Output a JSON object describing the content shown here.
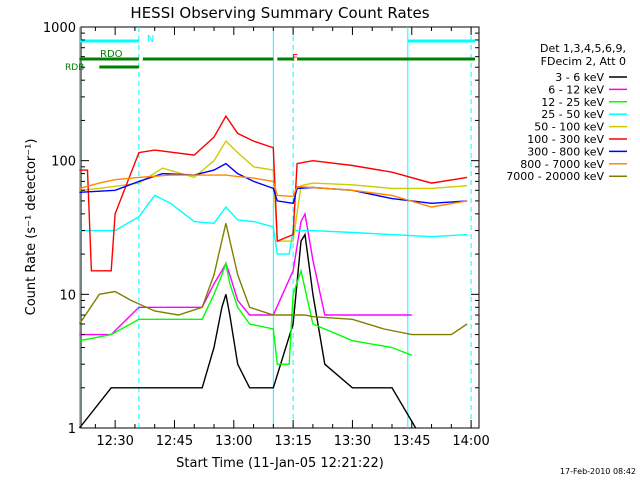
{
  "chart_data": {
    "type": "line",
    "title": "HESSI Observing Summary Count Rates",
    "xlabel": "Start Time (11-Jan-05 12:21:22)",
    "ylabel": "Count Rate (s⁻¹ detector⁻¹)",
    "x_scale": "time",
    "x_range": [
      "12:21:22",
      "14:02:00"
    ],
    "y_scale": "log",
    "ylim": [
      1,
      1000
    ],
    "x_ticks": [
      "12:30",
      "12:45",
      "13:00",
      "13:15",
      "13:30",
      "13:45",
      "14:00"
    ],
    "y_ticks": [
      "1",
      "10",
      "100",
      "1000"
    ],
    "legend_header": [
      "Det 1,3,4,5,6,9,",
      "FDecim 2, Att 0"
    ],
    "series": [
      {
        "name": "3 - 6 keV",
        "color": "#000000",
        "x": [
          "12:21",
          "12:29",
          "12:36",
          "12:45",
          "12:52",
          "12:55",
          "12:57",
          "12:58",
          "12:59",
          "13:01",
          "13:04",
          "13:10",
          "13:15",
          "13:17",
          "13:18",
          "13:20",
          "13:23",
          "13:30",
          "13:40",
          "13:46"
        ],
        "y": [
          1,
          2,
          2,
          2,
          2,
          4,
          8,
          10,
          7,
          3,
          2,
          2,
          6,
          25,
          28,
          10,
          3,
          2,
          2,
          1
        ]
      },
      {
        "name": "6 - 12 keV",
        "color": "#ff00ff",
        "x": [
          "12:21",
          "12:29",
          "12:36",
          "12:45",
          "12:52",
          "12:55",
          "12:57",
          "12:58",
          "12:59",
          "13:01",
          "13:04",
          "13:10",
          "13:15",
          "13:17",
          "13:18",
          "13:20",
          "13:23",
          "13:30",
          "13:40",
          "13:45"
        ],
        "y": [
          5,
          5,
          8,
          8,
          8,
          12,
          15,
          17,
          14,
          9,
          7,
          7,
          15,
          35,
          40,
          18,
          7,
          7,
          7,
          7
        ]
      },
      {
        "name": "12 - 25 keV",
        "color": "#00ff00",
        "x": [
          "12:21",
          "12:29",
          "12:36",
          "12:45",
          "12:52",
          "12:55",
          "12:57",
          "12:58",
          "12:59",
          "13:01",
          "13:04",
          "13:10",
          "13:11",
          "13:14",
          "13:15",
          "13:17",
          "13:20",
          "13:30",
          "13:40",
          "13:45"
        ],
        "y": [
          4.5,
          5,
          6.5,
          6.5,
          6.5,
          10,
          14,
          17,
          12,
          8,
          6,
          5.5,
          3,
          3,
          10,
          15,
          6,
          4.5,
          4,
          3.5
        ]
      },
      {
        "name": "25 - 50 keV",
        "color": "#00ffff",
        "x": [
          "12:21",
          "12:26",
          "12:30",
          "12:36",
          "12:40",
          "12:44",
          "12:50",
          "12:55",
          "12:58",
          "13:01",
          "13:05",
          "13:10",
          "13:11",
          "13:14",
          "13:15",
          "13:20",
          "13:30",
          "13:40",
          "13:50",
          "13:59"
        ],
        "y": [
          30,
          30,
          30,
          38,
          55,
          48,
          35,
          34,
          45,
          36,
          35,
          32,
          20,
          20,
          30,
          30,
          29,
          28,
          27,
          28
        ]
      },
      {
        "name": "50 - 100 keV",
        "color": "#cccc00",
        "x": [
          "12:21",
          "12:26",
          "12:36",
          "12:42",
          "12:50",
          "12:55",
          "12:58",
          "13:01",
          "13:05",
          "13:10",
          "13:11",
          "13:15",
          "13:17",
          "13:20",
          "13:30",
          "13:40",
          "13:50",
          "13:59"
        ],
        "y": [
          60,
          62,
          68,
          88,
          75,
          100,
          140,
          115,
          90,
          85,
          25,
          25,
          65,
          68,
          66,
          62,
          62,
          65
        ]
      },
      {
        "name": "100 - 300 keV",
        "color": "#ff0000",
        "x": [
          "12:21",
          "12:23",
          "12:24",
          "12:29",
          "12:30",
          "12:36",
          "12:40",
          "12:50",
          "12:55",
          "12:58",
          "13:01",
          "13:05",
          "13:10",
          "13:11",
          "13:15",
          "13:16",
          "13:20",
          "13:30",
          "13:40",
          "13:50",
          "13:59"
        ],
        "y": [
          85,
          85,
          15,
          15,
          40,
          115,
          120,
          110,
          150,
          215,
          160,
          140,
          125,
          25,
          28,
          95,
          100,
          92,
          82,
          68,
          75
        ]
      },
      {
        "name": "300 - 800 keV",
        "color": "#0000ff",
        "x": [
          "12:21",
          "12:30",
          "12:36",
          "12:42",
          "12:50",
          "12:55",
          "12:58",
          "13:01",
          "13:05",
          "13:10",
          "13:11",
          "13:15",
          "13:16",
          "13:20",
          "13:30",
          "13:40",
          "13:50",
          "13:59"
        ],
        "y": [
          58,
          60,
          70,
          80,
          78,
          85,
          95,
          80,
          70,
          62,
          50,
          48,
          62,
          63,
          60,
          52,
          48,
          50
        ]
      },
      {
        "name": "800 - 7000 keV",
        "color": "#ff8800",
        "x": [
          "12:21",
          "12:26",
          "12:30",
          "12:36",
          "12:44",
          "12:50",
          "12:55",
          "12:58",
          "13:01",
          "13:05",
          "13:10",
          "13:11",
          "13:15",
          "13:16",
          "13:20",
          "13:30",
          "13:40",
          "13:50",
          "13:59"
        ],
        "y": [
          62,
          68,
          72,
          75,
          78,
          78,
          78,
          78,
          76,
          74,
          70,
          55,
          54,
          64,
          63,
          60,
          55,
          45,
          50
        ]
      },
      {
        "name": "7000 - 20000 keV",
        "color": "#808000",
        "x": [
          "12:21",
          "12:26",
          "12:30",
          "12:34",
          "12:40",
          "12:46",
          "12:52",
          "12:55",
          "12:58",
          "13:01",
          "13:04",
          "13:10",
          "13:15",
          "13:18",
          "13:20",
          "13:30",
          "13:38",
          "13:45",
          "13:55",
          "13:59"
        ],
        "y": [
          6,
          10,
          10.5,
          9,
          7.5,
          7,
          8,
          14,
          34,
          14,
          8,
          7,
          7,
          7,
          6.8,
          6.5,
          5.5,
          5,
          5,
          6
        ]
      }
    ],
    "state_bars": [
      {
        "label": "N",
        "color": "#00ffff",
        "row": "top",
        "segments": [
          [
            "12:21",
            "12:36"
          ],
          [
            "13:44",
            "14:01"
          ]
        ]
      },
      {
        "label": "F",
        "color": "#ff0000",
        "row": "upper",
        "segments": [
          [
            "13:17",
            "13:20"
          ]
        ]
      },
      {
        "label": "RDO",
        "color": "#008000",
        "row": "upper",
        "segments": [
          [
            "12:21",
            "12:36"
          ],
          [
            "12:37",
            "13:10"
          ],
          [
            "13:11",
            "13:15"
          ],
          [
            "13:16",
            "14:01"
          ]
        ]
      },
      {
        "label": "RDB",
        "color": "#008000",
        "row": "lower",
        "segments": [
          [
            "12:26",
            "12:36"
          ]
        ]
      }
    ],
    "markers": [
      {
        "time": "12:21",
        "color": "#00ffff",
        "style": "solid"
      },
      {
        "time": "12:36",
        "color": "#00ffff",
        "style": "dashed"
      },
      {
        "time": "13:10",
        "color": "#00ffff",
        "style": "solid"
      },
      {
        "time": "13:15",
        "color": "#00ffff",
        "style": "dashed"
      },
      {
        "time": "13:44",
        "color": "#00ffff",
        "style": "solid"
      },
      {
        "time": "14:00",
        "color": "#00ffff",
        "style": "dashed"
      }
    ],
    "timestamp": "17-Feb-2010 08:42"
  }
}
